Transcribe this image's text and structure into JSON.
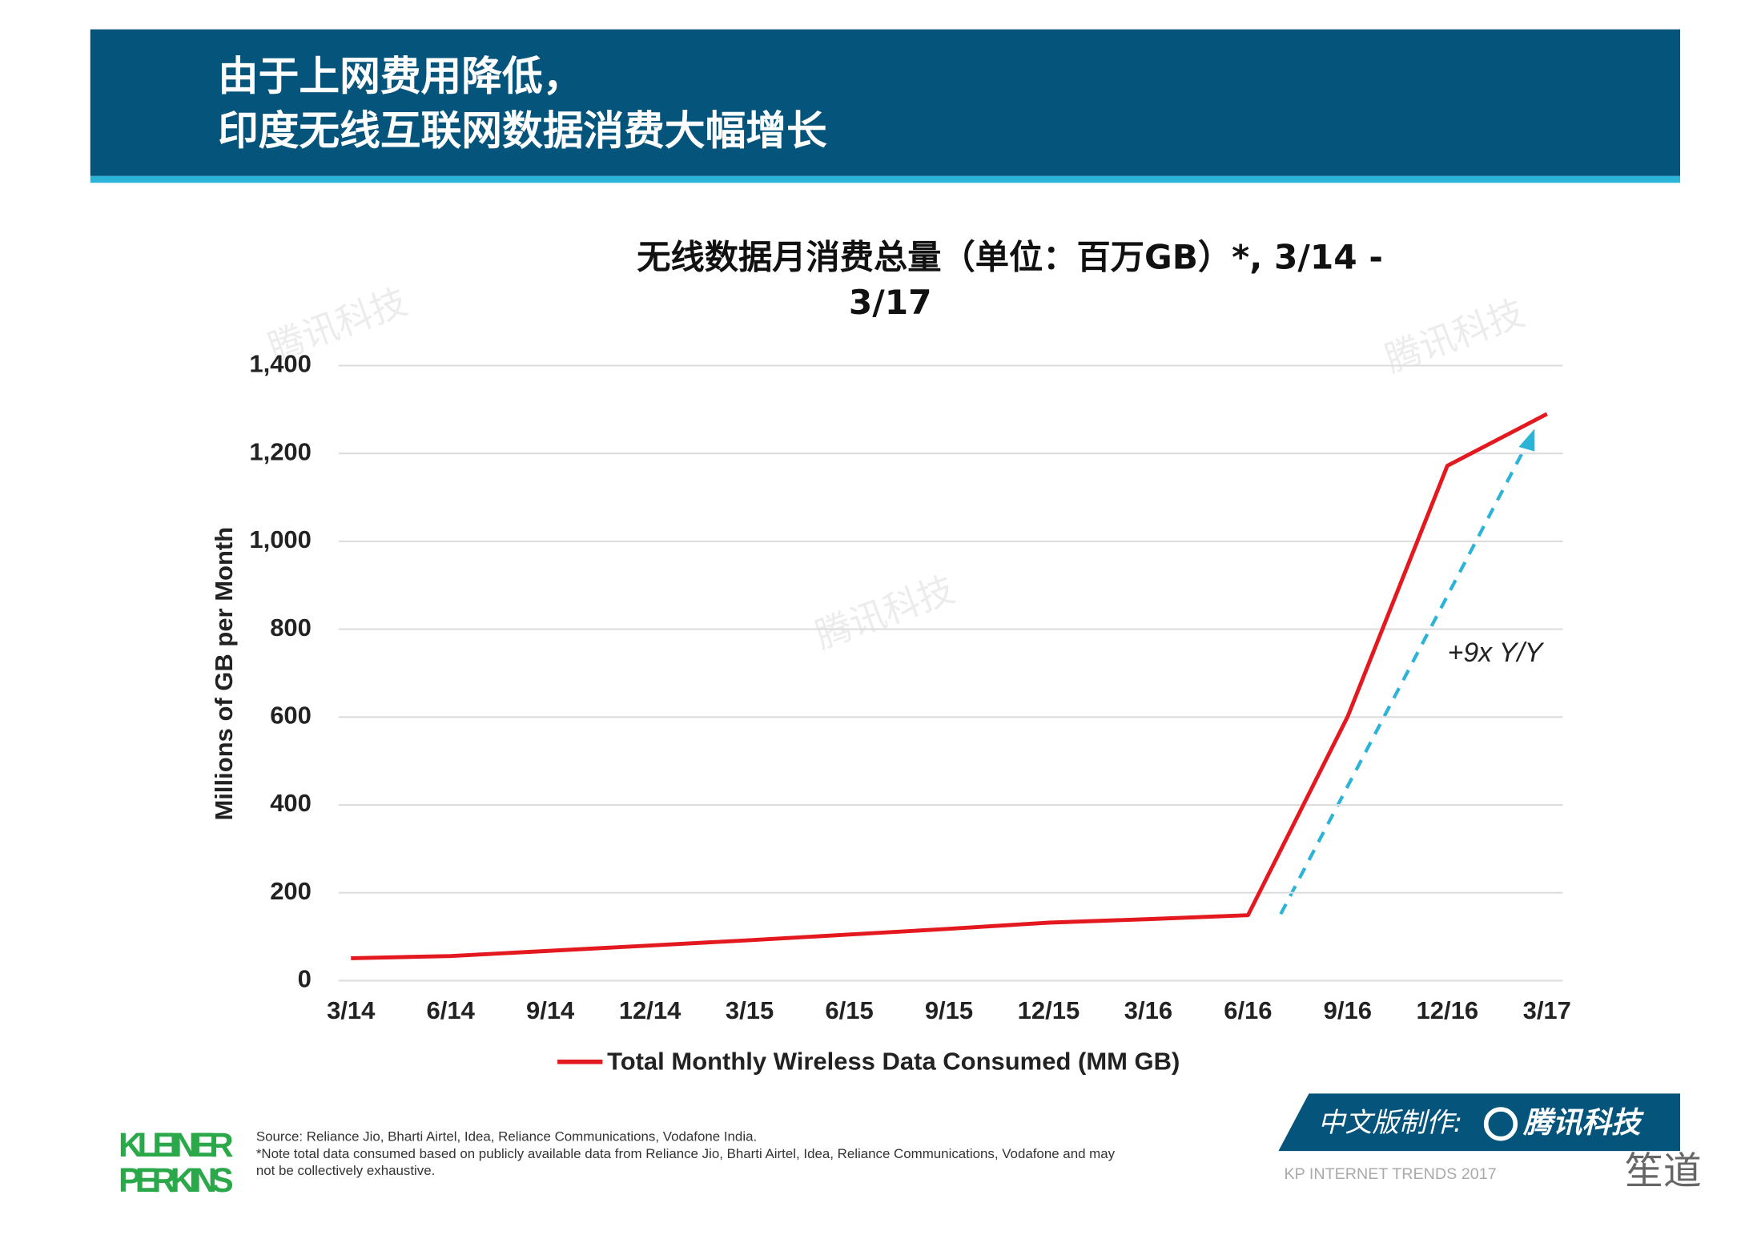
{
  "header": {
    "title": [
      "由于上网费用降低，",
      "印度无线互联网数据消费大幅增长"
    ]
  },
  "chart_data": {
    "type": "line",
    "title": [
      "无线数据月消费总量（单位：百万GB）*, 3/14 -",
      "3/17"
    ],
    "y_label": "Millions of GB per Month",
    "x": [
      "3/14",
      "6/14",
      "9/14",
      "12/14",
      "3/15",
      "6/15",
      "9/15",
      "12/15",
      "3/16",
      "6/16",
      "9/16",
      "12/16",
      "3/17"
    ],
    "series": [
      {
        "name": "Total Monthly Wireless Data Consumed (MM GB)",
        "color": "#e3191f",
        "values": [
          51,
          56,
          68,
          80,
          92,
          105,
          118,
          132,
          140,
          149,
          601,
          1172,
          1290
        ]
      }
    ],
    "ylim": [
      0,
      1400
    ],
    "yticks": [
      0,
      200,
      400,
      600,
      800,
      {
        "value": 1000,
        "label": "1,000"
      },
      {
        "value": 1200,
        "label": "1,200"
      },
      {
        "value": 1400,
        "label": "1,400"
      }
    ],
    "grid": true,
    "annotation": "+9x Y/Y",
    "legend": "bottom"
  },
  "footer": {
    "logo": [
      "KLEINER",
      "PERKINS"
    ],
    "source": "Source: Reliance Jio, Bharti Airtel, Idea, Reliance Communications, Vodafone India.",
    "note": [
      "*Note total data consumed based on publicly available data from Reliance Jio, Bharti Airtel, Idea, Reliance Communications, Vodafone and may",
      "not be collectively exhaustive."
    ],
    "credit": "中文版制作:",
    "credit_brand": "腾讯科技",
    "trends": "KP INTERNET TRENDS 2017",
    "watermark": "腾讯科技",
    "wechat": "笙道"
  }
}
